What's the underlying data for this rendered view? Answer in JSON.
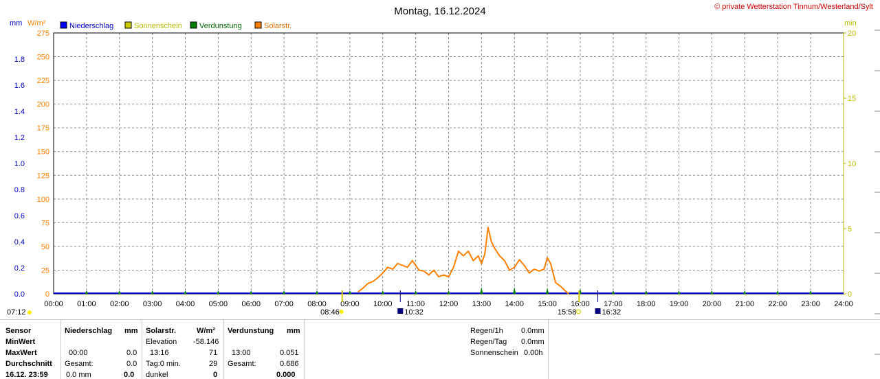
{
  "title": "Montag, 16.12.2024",
  "copyright": "© private Wetterstation Tinnum/Westerland/Sylt",
  "axis_units": {
    "left_mm": "mm",
    "left_wm2": "W/m²",
    "right_min": "min"
  },
  "legend": [
    {
      "label": "Niederschlag",
      "color": "#0000ff",
      "text_color": "#0000cc"
    },
    {
      "label": "Sonnenschein",
      "color": "#cccc00",
      "text_color": "#bbbb00"
    },
    {
      "label": "Verdunstung",
      "color": "#008000",
      "text_color": "#006600"
    },
    {
      "label": "Solarstr.",
      "color": "#ff8000",
      "text_color": "#e07000"
    }
  ],
  "colors": {
    "rain": "#0000cc",
    "solar": "#ff8000",
    "sun": "#cccc00",
    "evap": "#008000",
    "grid": "#888888"
  },
  "astro_markers": {
    "sunrise": "08:46",
    "sunset": "15:58",
    "moon_1": "10:32",
    "moon_2": "16:32",
    "left_corner": "07:12"
  },
  "chart_data": {
    "type": "line",
    "x_ticks": [
      "00:00",
      "01:00",
      "02:00",
      "03:00",
      "04:00",
      "05:00",
      "06:00",
      "07:00",
      "08:00",
      "09:00",
      "10:00",
      "11:00",
      "12:00",
      "13:00",
      "14:00",
      "15:00",
      "16:00",
      "17:00",
      "18:00",
      "19:00",
      "20:00",
      "21:00",
      "22:00",
      "23:00",
      "24:00"
    ],
    "xlim": [
      0,
      24
    ],
    "y_left_mm": {
      "ticks": [
        "0.0",
        "0.2",
        "0.4",
        "0.6",
        "0.8",
        "1.0",
        "1.2",
        "1.4",
        "1.6",
        "1.8"
      ],
      "ylim": [
        0,
        2.0
      ]
    },
    "y_left_wm2": {
      "ticks": [
        "0",
        "25",
        "50",
        "75",
        "100",
        "125",
        "150",
        "175",
        "200",
        "225",
        "250",
        "275"
      ],
      "ylim": [
        0,
        275
      ]
    },
    "y_right_min": {
      "ticks": [
        "0",
        "5",
        "10",
        "15",
        "20"
      ],
      "ylim": [
        0,
        20
      ]
    },
    "series": [
      {
        "name": "Solarstr.",
        "axis": "W/m2",
        "x": [
          9.25,
          9.4,
          9.55,
          9.7,
          9.85,
          10.0,
          10.15,
          10.3,
          10.45,
          10.6,
          10.75,
          10.9,
          11.0,
          11.1,
          11.25,
          11.4,
          11.55,
          11.7,
          11.85,
          12.0,
          12.15,
          12.3,
          12.45,
          12.6,
          12.75,
          12.9,
          13.0,
          13.1,
          13.2,
          13.3,
          13.4,
          13.55,
          13.7,
          13.85,
          14.0,
          14.15,
          14.3,
          14.45,
          14.6,
          14.75,
          14.9,
          15.0,
          15.1,
          15.25,
          15.4,
          15.55,
          15.65
        ],
        "y": [
          2,
          6,
          11,
          13,
          17,
          22,
          28,
          26,
          32,
          30,
          28,
          35,
          30,
          25,
          24,
          20,
          25,
          18,
          20,
          18,
          28,
          45,
          40,
          45,
          35,
          40,
          32,
          42,
          70,
          55,
          48,
          40,
          35,
          25,
          28,
          36,
          30,
          22,
          26,
          24,
          26,
          38,
          32,
          12,
          8,
          3,
          0
        ]
      },
      {
        "name": "Verdunstung",
        "axis": "mm",
        "x": [
          1,
          2,
          3,
          4,
          5,
          6,
          7,
          8,
          9,
          10,
          11,
          12,
          13,
          14,
          15,
          16,
          17,
          18,
          19,
          20,
          21,
          22,
          23
        ],
        "y": [
          0.005,
          0.005,
          0.005,
          0.005,
          0.005,
          0.005,
          0.005,
          0.005,
          0.005,
          0.005,
          0.01,
          0.02,
          0.051,
          0.05,
          0.045,
          0.04,
          0.01,
          0.005,
          0.005,
          0.005,
          0.005,
          0.005,
          0.005
        ]
      },
      {
        "name": "Niederschlag",
        "axis": "mm",
        "x": [
          0,
          24
        ],
        "y": [
          0.0,
          0.0
        ]
      }
    ]
  },
  "stats": {
    "sensor": "Sensor",
    "minwert": "MinWert",
    "maxwert": "MaxWert",
    "durchschnitt": "Durchschnitt",
    "datetime": "16.12. 23:59",
    "nied_header": "Niederschlag",
    "nied_unit": "mm",
    "nied_max_time": "00:00",
    "nied_max_val": "0.0",
    "nied_ges_label": "Gesamt:",
    "nied_ges_val": "0.0",
    "nied_cur": "0.0 mm",
    "nied_cur_bold": "0.0",
    "solar_header": "Solarstr.",
    "solar_unit": "W/m²",
    "elev_label": "Elevation",
    "elev_val": "-58.146",
    "solar_max_time": "13:16",
    "solar_max_val": "71",
    "tag_label": "Tag:0 min.",
    "tag_val": "29",
    "dunkel_label": "dunkel",
    "dunkel_val": "0",
    "verd_header": "Verdunstung",
    "verd_unit": "mm",
    "verd_max_time": "13:00",
    "verd_max_val": "0.051",
    "verd_ges_label": "Gesamt:",
    "verd_ges_val": "0.686",
    "verd_cur_bold": "0.000",
    "regen1h_label": "Regen/1h",
    "regen1h_val": "0.0mm",
    "regentag_label": "Regen/Tag",
    "regentag_val": "0.0mm",
    "sonne_label": "Sonnenschein",
    "sonne_val": "0.00h"
  }
}
